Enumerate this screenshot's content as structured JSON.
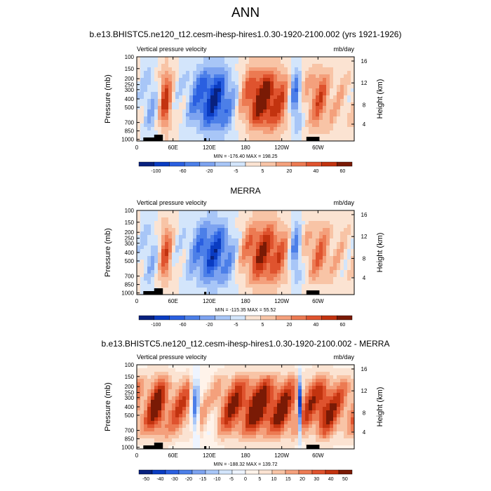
{
  "figure": {
    "title": "ANN"
  },
  "chart_data": [
    {
      "type": "heatmap",
      "title": "b.e13.BHISTC5.ne120_t12.cesm-ihesp-hires1.0.30-1920-2100.002 (yrs 1921-1926)",
      "left_label": "Vertical pressure velocity",
      "right_label": "mb/day",
      "ylabel": "Pressure (mb)",
      "ylabel_right": "Height (km)",
      "x_ticks": [
        "0",
        "60E",
        "120E",
        "180",
        "120W",
        "60W"
      ],
      "y_ticks": [
        "100",
        "150",
        "200",
        "250",
        "300",
        "400",
        "500",
        "700",
        "850",
        "1000"
      ],
      "y_ticks_right": [
        "16",
        "12",
        "8",
        "4"
      ],
      "stats": "MIN = -176.40  MAX = 198.25",
      "colorbar_levels": [
        "-100",
        "-60",
        "-20",
        "-5",
        "5",
        "20",
        "40",
        "60"
      ],
      "ylim": [
        1000,
        100
      ],
      "xlim": [
        0,
        360
      ]
    },
    {
      "type": "heatmap",
      "title": "MERRA",
      "left_label": "Vertical pressure velocity",
      "right_label": "mb/day",
      "ylabel": "Pressure (mb)",
      "ylabel_right": "Height (km)",
      "x_ticks": [
        "0",
        "60E",
        "120E",
        "180",
        "120W",
        "60W"
      ],
      "y_ticks": [
        "100",
        "150",
        "200",
        "250",
        "300",
        "400",
        "500",
        "700",
        "850",
        "1000"
      ],
      "y_ticks_right": [
        "16",
        "12",
        "8",
        "4"
      ],
      "stats": "MIN = -115.35  MAX = 55.52",
      "colorbar_levels": [
        "-100",
        "-60",
        "-20",
        "-5",
        "5",
        "20",
        "40",
        "60"
      ],
      "ylim": [
        1000,
        100
      ],
      "xlim": [
        0,
        360
      ]
    },
    {
      "type": "heatmap",
      "title": "b.e13.BHISTC5.ne120_t12.cesm-ihesp-hires1.0.30-1920-2100.002 - MERRA",
      "left_label": "Vertical pressure velocity",
      "right_label": "mb/day",
      "ylabel": "Pressure (mb)",
      "ylabel_right": "Height (km)",
      "x_ticks": [
        "0",
        "60E",
        "120E",
        "180",
        "120W",
        "60W"
      ],
      "y_ticks": [
        "100",
        "150",
        "200",
        "250",
        "300",
        "400",
        "500",
        "700",
        "850",
        "1000"
      ],
      "y_ticks_right": [
        "16",
        "12",
        "8",
        "4"
      ],
      "stats": "MIN = -188.32  MAX = 139.72",
      "colorbar_levels": [
        "-50",
        "-40",
        "-30",
        "-20",
        "-15",
        "-10",
        "-5",
        "0",
        "5",
        "10",
        "15",
        "20",
        "30",
        "40",
        "50"
      ],
      "ylim": [
        1000,
        100
      ],
      "xlim": [
        0,
        360
      ]
    }
  ],
  "colors": {
    "colorbar_13": [
      "#08217f",
      "#0a3cc2",
      "#2a5fe0",
      "#4c7fe8",
      "#7da3f0",
      "#a8c6f7",
      "#d3e5fb",
      "#fbe3d2",
      "#f8c4a6",
      "#f4a07c",
      "#ec7a52",
      "#df532e",
      "#c2330f",
      "#7a1a05"
    ],
    "colorbar_16": [
      "#08217f",
      "#0a3cc2",
      "#2a5fe0",
      "#4c7fe8",
      "#7da3f0",
      "#a8c6f7",
      "#d3e5fb",
      "#eef4ff",
      "#fff3ea",
      "#fbe3d2",
      "#f8c4a6",
      "#f4a07c",
      "#ec7a52",
      "#df532e",
      "#c2330f",
      "#7a1a05"
    ]
  }
}
